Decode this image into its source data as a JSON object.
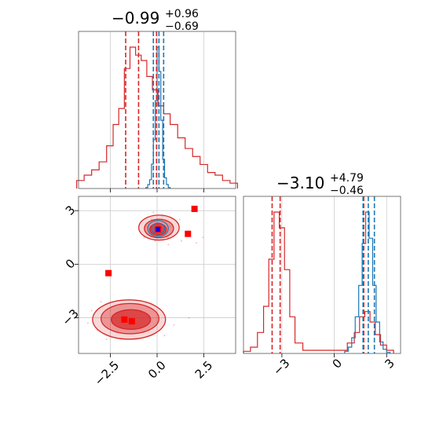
{
  "colors": {
    "series_a": "#d62728",
    "series_b": "#1f77b4",
    "marker": "#ff0000",
    "marker_center": "#0000ff",
    "grid": "#cccccc",
    "axes": "#555555"
  },
  "chart_data": [
    {
      "panel": "top-left",
      "type": "histogram",
      "title": {
        "main": "−0.99",
        "sup": "+0.96",
        "sub": "−0.69"
      },
      "xlim": [
        -4.2,
        4.2
      ],
      "x_ticks": [
        -2.5,
        0.0,
        2.5
      ],
      "x_tick_labels": [],
      "y_ticks": [],
      "grid": true,
      "series": [
        {
          "color_key": "series_a",
          "quantiles": [
            -1.68,
            -0.99,
            -0.03
          ],
          "x": [
            -4.1,
            -3.7,
            -3.3,
            -2.9,
            -2.5,
            -2.2,
            -1.9,
            -1.6,
            -1.3,
            -1.0,
            -0.7,
            -0.4,
            -0.1,
            0.2,
            0.5,
            0.9,
            1.3,
            1.7,
            2.1,
            2.5,
            2.9,
            3.3,
            3.7,
            4.1
          ],
          "y": [
            0.3,
            0.5,
            0.7,
            1.0,
            1.6,
            2.4,
            3.0,
            4.5,
            5.3,
            5.0,
            4.8,
            4.2,
            3.7,
            3.1,
            2.8,
            2.4,
            1.9,
            1.5,
            1.2,
            0.9,
            0.6,
            0.5,
            0.3,
            0.2
          ]
        },
        {
          "color_key": "series_b",
          "quantiles": [
            -0.2,
            0.1,
            0.35
          ],
          "x": [
            -0.55,
            -0.45,
            -0.35,
            -0.25,
            -0.15,
            -0.05,
            0.05,
            0.15,
            0.25,
            0.35,
            0.45,
            0.55,
            0.65
          ],
          "y": [
            0.2,
            0.8,
            1.8,
            5.0,
            10.0,
            18.0,
            29.0,
            24.0,
            14.0,
            6.0,
            2.2,
            0.8,
            0.2
          ]
        }
      ]
    },
    {
      "panel": "bottom-right",
      "type": "histogram",
      "title": {
        "main": "−3.10",
        "sup": "+4.79",
        "sub": "−0.46"
      },
      "xlim": [
        -5.2,
        3.8
      ],
      "x_ticks": [
        -3,
        0,
        3
      ],
      "x_tick_labels": [
        "−3",
        "0",
        "3"
      ],
      "y_ticks": [],
      "grid": true,
      "series": [
        {
          "color_key": "series_a",
          "quantiles": [
            -3.56,
            -3.1,
            1.69
          ],
          "x": [
            -5.0,
            -4.6,
            -4.2,
            -3.9,
            -3.6,
            -3.3,
            -3.0,
            -2.7,
            -2.4,
            -2.1,
            -1.5,
            -0.5,
            0.5,
            1.0,
            1.3,
            1.6,
            1.9,
            2.2,
            2.5,
            2.8,
            3.2
          ],
          "y": [
            0.2,
            0.6,
            2.0,
            4.5,
            9.0,
            13.5,
            12.0,
            8.0,
            3.5,
            1.0,
            0.3,
            0.3,
            0.3,
            1.0,
            2.0,
            3.5,
            4.0,
            3.0,
            1.8,
            0.8,
            0.3
          ]
        },
        {
          "color_key": "series_b",
          "quantiles": [
            1.65,
            1.95,
            2.3
          ],
          "x": [
            0.7,
            0.9,
            1.1,
            1.3,
            1.5,
            1.7,
            1.9,
            2.1,
            2.3,
            2.5,
            2.7,
            2.9,
            3.1
          ],
          "y": [
            0.4,
            1.2,
            3.0,
            7.0,
            13.0,
            21.0,
            27.0,
            22.0,
            13.0,
            6.0,
            2.2,
            0.8,
            0.2
          ]
        }
      ]
    },
    {
      "panel": "bottom-left",
      "type": "contour",
      "xlim": [
        -4.2,
        4.2
      ],
      "ylim": [
        -5.0,
        3.8
      ],
      "x_ticks": [
        -2.5,
        0.0,
        2.5
      ],
      "x_tick_labels": [
        "−2.5",
        "0.0",
        "2.5"
      ],
      "y_ticks": [
        3,
        0,
        -3
      ],
      "y_tick_labels": [
        "3",
        "0",
        "−3"
      ],
      "grid": true,
      "series_a_contours": [
        {
          "cx": -1.5,
          "cy": -3.1,
          "rx": 1.95,
          "ry": 1.1,
          "level": 3
        },
        {
          "cx": -1.45,
          "cy": -3.05,
          "rx": 1.55,
          "ry": 0.85,
          "level": 2
        },
        {
          "cx": -1.4,
          "cy": -3.1,
          "rx": 1.05,
          "ry": 0.55,
          "level": 1
        },
        {
          "cx": 0.1,
          "cy": 2.05,
          "rx": 1.08,
          "ry": 0.7,
          "level": 3
        },
        {
          "cx": 0.1,
          "cy": 2.0,
          "rx": 0.78,
          "ry": 0.52,
          "level": 2
        },
        {
          "cx": 0.05,
          "cy": 1.95,
          "rx": 0.45,
          "ry": 0.32,
          "level": 1
        }
      ],
      "series_b_contours": [
        {
          "cx": 0.05,
          "cy": 2.0,
          "rx": 0.55,
          "ry": 0.45
        },
        {
          "cx": 0.05,
          "cy": 2.0,
          "rx": 0.35,
          "ry": 0.3
        },
        {
          "cx": 0.05,
          "cy": 2.0,
          "rx": 0.18,
          "ry": 0.16
        }
      ],
      "markers": [
        {
          "x": 2.0,
          "y": 3.1
        },
        {
          "x": 1.65,
          "y": 1.7
        },
        {
          "x": -2.6,
          "y": -0.5
        },
        {
          "x": -1.75,
          "y": -3.1
        },
        {
          "x": -1.35,
          "y": -3.2
        },
        {
          "x": 0.05,
          "y": 1.95
        }
      ],
      "center_marker": {
        "x": 0.05,
        "y": 1.95
      },
      "scatter_a": [
        [
          -3.5,
          -2.6
        ],
        [
          -3.2,
          -3.7
        ],
        [
          0.6,
          1.1
        ],
        [
          1.3,
          1.3
        ],
        [
          2.45,
          1.5
        ],
        [
          -0.7,
          1.5
        ],
        [
          -3.7,
          -3.3
        ],
        [
          0.9,
          -3.4
        ],
        [
          1.7,
          -3.0
        ],
        [
          -2.7,
          -4.2
        ],
        [
          -0.2,
          2.9
        ],
        [
          1.2,
          2.5
        ],
        [
          -3.0,
          -2.1
        ],
        [
          0.4,
          -4.0
        ],
        [
          2.1,
          1.2
        ]
      ],
      "scatter_b": [
        [
          -0.4,
          1.6
        ],
        [
          0.5,
          2.4
        ],
        [
          -0.3,
          2.5
        ],
        [
          0.6,
          1.5
        ],
        [
          0.7,
          2.1
        ],
        [
          -0.5,
          2.1
        ],
        [
          0.3,
          2.7
        ],
        [
          -0.1,
          1.3
        ]
      ]
    }
  ]
}
